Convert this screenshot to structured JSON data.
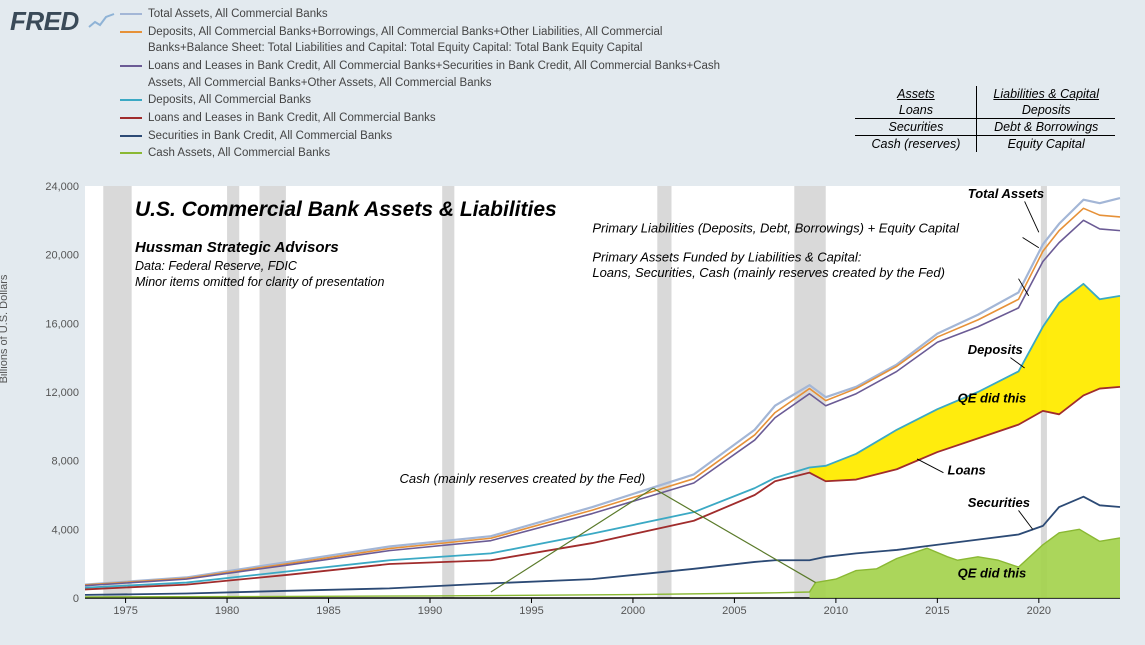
{
  "logo": "FRED",
  "y_axis_label": "Billions of U.S. Dollars",
  "legend": [
    {
      "color": "#a3b6d6",
      "label": "Total Assets, All Commercial Banks"
    },
    {
      "color": "#e69138",
      "label": "Deposits, All Commercial Banks+Borrowings, All Commercial Banks+Other Liabilities, All Commercial Banks+Balance Sheet: Total Liabilities and Capital: Total Equity Capital: Total Bank Equity Capital"
    },
    {
      "color": "#6b5b95",
      "label": "Loans and Leases in Bank Credit, All Commercial Banks+Securities in Bank Credit, All Commercial Banks+Cash Assets, All Commercial Banks+Other Assets, All Commercial Banks"
    },
    {
      "color": "#3ba9c4",
      "label": "Deposits, All Commercial Banks"
    },
    {
      "color": "#a02c2c",
      "label": "Loans and Leases in Bank Credit, All Commercial Banks"
    },
    {
      "color": "#2c4a75",
      "label": "Securities in Bank Credit, All Commercial Banks"
    },
    {
      "color": "#8ab833",
      "label": "Cash Assets, All Commercial Banks"
    }
  ],
  "balance_table": {
    "header": [
      "Assets",
      "Liabilities & Capital"
    ],
    "rows": [
      [
        "Loans",
        "Deposits"
      ],
      [
        "Securities",
        "Debt & Borrowings"
      ],
      [
        "Cash (reserves)",
        "Equity Capital"
      ]
    ]
  },
  "chart": {
    "type": "line-area",
    "x_range": [
      1973,
      2024
    ],
    "y_range": [
      0,
      24000
    ],
    "y_ticks": [
      0,
      4000,
      8000,
      12000,
      16000,
      20000,
      24000
    ],
    "x_ticks": [
      1975,
      1980,
      1985,
      1990,
      1995,
      2000,
      2005,
      2010,
      2015,
      2020
    ],
    "plot_bg": "#ffffff",
    "outer_bg": "#e3eaef",
    "recession_bars": [
      [
        1973.9,
        1975.3
      ],
      [
        1980.0,
        1980.6
      ],
      [
        1981.6,
        1982.9
      ],
      [
        1990.6,
        1991.2
      ],
      [
        2001.2,
        2001.9
      ],
      [
        2007.95,
        2009.5
      ],
      [
        2020.1,
        2020.4
      ]
    ],
    "recession_color": "#d9d9d9",
    "axis_color": "#000000",
    "tick_label_fontsize": 11,
    "title": "U.S. Commercial Bank Assets & Liabilities",
    "subtitle1": "Hussman Strategic Advisors",
    "subtitle2a": "Data: Federal Reserve, FDIC",
    "subtitle2b": "Minor items omitted for clarity of presentation",
    "annotations": {
      "total_assets": "Total Assets",
      "primary_liab": "Primary Liabilities (Deposits, Debt, Borrowings) + Equity Capital",
      "primary_assets_1": "Primary Assets Funded by Liabilities & Capital:",
      "primary_assets_2": "Loans, Securities, Cash (mainly reserves created by the Fed)",
      "deposits": "Deposits",
      "loans": "Loans",
      "securities": "Securities",
      "cash_note": "Cash (mainly reserves created by the Fed)",
      "qe1": "QE did this",
      "qe2": "QE did this"
    },
    "series": {
      "total_assets": {
        "color": "#a3b6d6",
        "width": 2.2,
        "data": [
          [
            1973,
            780
          ],
          [
            1978,
            1200
          ],
          [
            1983,
            2100
          ],
          [
            1988,
            3000
          ],
          [
            1993,
            3600
          ],
          [
            1998,
            5300
          ],
          [
            2003,
            7200
          ],
          [
            2006,
            9800
          ],
          [
            2007,
            11200
          ],
          [
            2008.7,
            12400
          ],
          [
            2009.5,
            11700
          ],
          [
            2011,
            12300
          ],
          [
            2013,
            13600
          ],
          [
            2015,
            15400
          ],
          [
            2017,
            16500
          ],
          [
            2019,
            17800
          ],
          [
            2020.2,
            20600
          ],
          [
            2021,
            21800
          ],
          [
            2022.2,
            23200
          ],
          [
            2023,
            23000
          ],
          [
            2024,
            23300
          ]
        ]
      },
      "liab_capital": {
        "color": "#e69138",
        "width": 1.6,
        "data": [
          [
            1973,
            760
          ],
          [
            1978,
            1150
          ],
          [
            1983,
            2000
          ],
          [
            1988,
            2880
          ],
          [
            1993,
            3480
          ],
          [
            1998,
            5120
          ],
          [
            2003,
            6950
          ],
          [
            2006,
            9500
          ],
          [
            2007,
            10800
          ],
          [
            2008.7,
            12200
          ],
          [
            2009.5,
            11500
          ],
          [
            2011,
            12200
          ],
          [
            2013,
            13500
          ],
          [
            2015,
            15200
          ],
          [
            2017,
            16200
          ],
          [
            2019,
            17400
          ],
          [
            2020.2,
            20200
          ],
          [
            2021,
            21400
          ],
          [
            2022.2,
            22700
          ],
          [
            2023,
            22300
          ],
          [
            2024,
            22200
          ]
        ]
      },
      "primary_assets": {
        "color": "#6b5b95",
        "width": 1.6,
        "data": [
          [
            1973,
            720
          ],
          [
            1978,
            1100
          ],
          [
            1983,
            1920
          ],
          [
            1988,
            2760
          ],
          [
            1993,
            3340
          ],
          [
            1998,
            4920
          ],
          [
            2003,
            6700
          ],
          [
            2006,
            9200
          ],
          [
            2007,
            10500
          ],
          [
            2008.7,
            11900
          ],
          [
            2009.5,
            11200
          ],
          [
            2011,
            11900
          ],
          [
            2013,
            13200
          ],
          [
            2015,
            14900
          ],
          [
            2017,
            15800
          ],
          [
            2019,
            16900
          ],
          [
            2020.2,
            19600
          ],
          [
            2021,
            20700
          ],
          [
            2022.2,
            22000
          ],
          [
            2023,
            21500
          ],
          [
            2024,
            21400
          ]
        ]
      },
      "deposits": {
        "color": "#3ba9c4",
        "width": 1.8,
        "data": [
          [
            1973,
            600
          ],
          [
            1978,
            900
          ],
          [
            1983,
            1550
          ],
          [
            1988,
            2200
          ],
          [
            1993,
            2600
          ],
          [
            1998,
            3750
          ],
          [
            2003,
            5000
          ],
          [
            2006,
            6400
          ],
          [
            2007,
            7000
          ],
          [
            2008.7,
            7600
          ],
          [
            2009.5,
            7700
          ],
          [
            2011,
            8400
          ],
          [
            2013,
            9800
          ],
          [
            2015,
            11000
          ],
          [
            2017,
            12000
          ],
          [
            2019,
            13200
          ],
          [
            2020.2,
            15800
          ],
          [
            2021,
            17200
          ],
          [
            2022.2,
            18300
          ],
          [
            2023,
            17400
          ],
          [
            2024,
            17600
          ]
        ]
      },
      "loans": {
        "color": "#a02c2c",
        "width": 1.8,
        "data": [
          [
            1973,
            500
          ],
          [
            1978,
            780
          ],
          [
            1983,
            1350
          ],
          [
            1988,
            1980
          ],
          [
            1993,
            2200
          ],
          [
            1998,
            3200
          ],
          [
            2003,
            4500
          ],
          [
            2006,
            6000
          ],
          [
            2007,
            6800
          ],
          [
            2008.7,
            7300
          ],
          [
            2009.5,
            6800
          ],
          [
            2011,
            6900
          ],
          [
            2013,
            7500
          ],
          [
            2015,
            8500
          ],
          [
            2017,
            9300
          ],
          [
            2019,
            10100
          ],
          [
            2020.2,
            10900
          ],
          [
            2021,
            10700
          ],
          [
            2022.2,
            11800
          ],
          [
            2023,
            12200
          ],
          [
            2024,
            12300
          ]
        ]
      },
      "securities": {
        "color": "#2c4a75",
        "width": 1.8,
        "data": [
          [
            1973,
            180
          ],
          [
            1978,
            260
          ],
          [
            1983,
            420
          ],
          [
            1988,
            560
          ],
          [
            1993,
            850
          ],
          [
            1998,
            1100
          ],
          [
            2003,
            1700
          ],
          [
            2006,
            2100
          ],
          [
            2007,
            2200
          ],
          [
            2008.7,
            2200
          ],
          [
            2009.5,
            2400
          ],
          [
            2011,
            2600
          ],
          [
            2013,
            2800
          ],
          [
            2015,
            3100
          ],
          [
            2017,
            3400
          ],
          [
            2019,
            3700
          ],
          [
            2020.2,
            4200
          ],
          [
            2021,
            5300
          ],
          [
            2022.2,
            5900
          ],
          [
            2023,
            5400
          ],
          [
            2024,
            5300
          ]
        ]
      },
      "cash": {
        "color": "#8ab833",
        "width": 1.4,
        "data": [
          [
            1973,
            60
          ],
          [
            1980,
            80
          ],
          [
            1990,
            120
          ],
          [
            2000,
            200
          ],
          [
            2007,
            300
          ],
          [
            2008.7,
            350
          ],
          [
            2009,
            900
          ],
          [
            2010,
            1100
          ],
          [
            2011,
            1600
          ],
          [
            2012,
            1700
          ],
          [
            2013,
            2300
          ],
          [
            2014.5,
            2900
          ],
          [
            2015.5,
            2400
          ],
          [
            2016,
            2200
          ],
          [
            2017,
            2400
          ],
          [
            2018,
            2200
          ],
          [
            2019,
            1800
          ],
          [
            2020.2,
            3100
          ],
          [
            2021,
            3800
          ],
          [
            2022,
            4000
          ],
          [
            2023,
            3300
          ],
          [
            2024,
            3500
          ]
        ]
      }
    },
    "yellow_fill": "#ffeb00",
    "green_fill": "#a2d149",
    "qe_text_color": "#000000",
    "cash_arrow_color": "#5a7a2a"
  }
}
